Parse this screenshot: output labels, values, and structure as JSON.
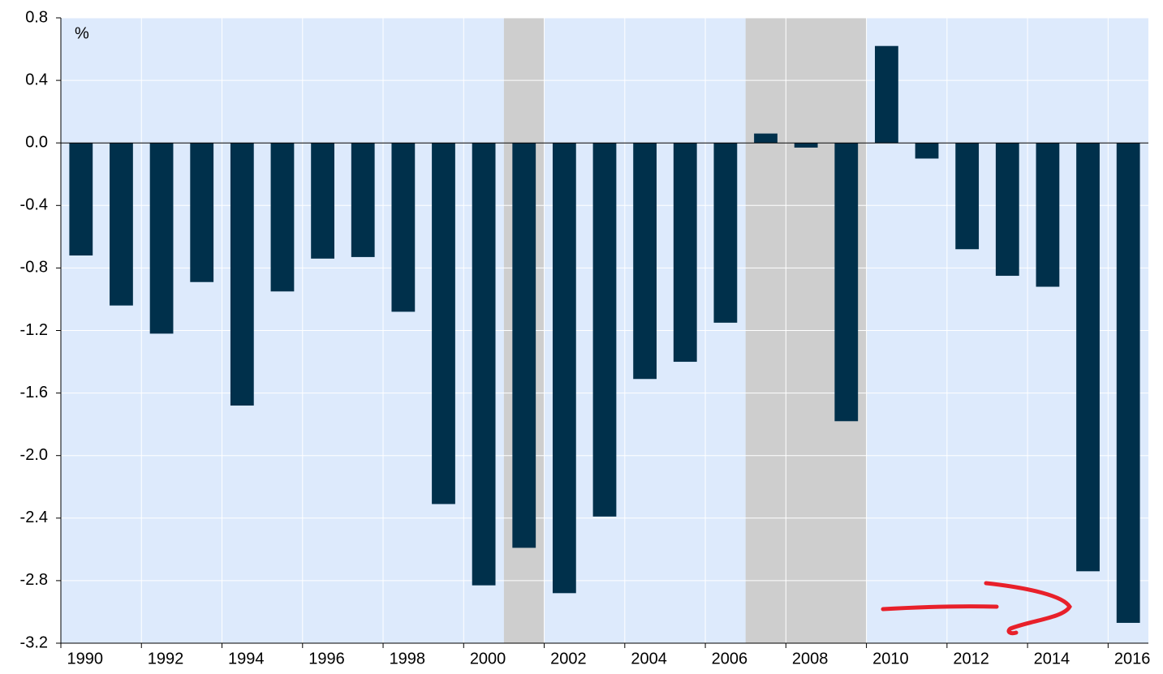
{
  "chart_data": {
    "type": "bar",
    "unit_label": "%",
    "x": [
      1990,
      1991,
      1992,
      1993,
      1994,
      1995,
      1996,
      1997,
      1998,
      1999,
      2000,
      2001,
      2002,
      2003,
      2004,
      2005,
      2006,
      2007,
      2008,
      2009,
      2010,
      2011,
      2012,
      2013,
      2014,
      2015,
      2016
    ],
    "values": [
      -0.72,
      -1.04,
      -1.22,
      -0.89,
      -1.68,
      -0.95,
      -0.74,
      -0.73,
      -1.08,
      -2.31,
      -2.83,
      -2.59,
      -2.88,
      -2.39,
      -1.51,
      -1.4,
      -1.15,
      0.06,
      -0.03,
      -1.78,
      0.62,
      -0.1,
      -0.68,
      -0.85,
      -0.92,
      -2.74,
      -3.07
    ],
    "color": "#00304b",
    "shaded_periods": [
      [
        2001,
        2002
      ],
      [
        2007,
        2010
      ]
    ],
    "xlim": [
      1990,
      2017
    ],
    "xticks": [
      1990,
      1992,
      1994,
      1996,
      1998,
      2000,
      2002,
      2004,
      2006,
      2008,
      2010,
      2012,
      2014,
      2016
    ],
    "ylim": [
      -3.2,
      0.8
    ],
    "yticks": [
      0.8,
      0.4,
      {
        "value": 0,
        "label": "0.0"
      },
      -0.4,
      -0.8,
      -1.2,
      -1.6,
      {
        "value": -2,
        "label": "-2.0"
      },
      -2.4,
      -2.8,
      -3.2
    ],
    "grid": true
  }
}
